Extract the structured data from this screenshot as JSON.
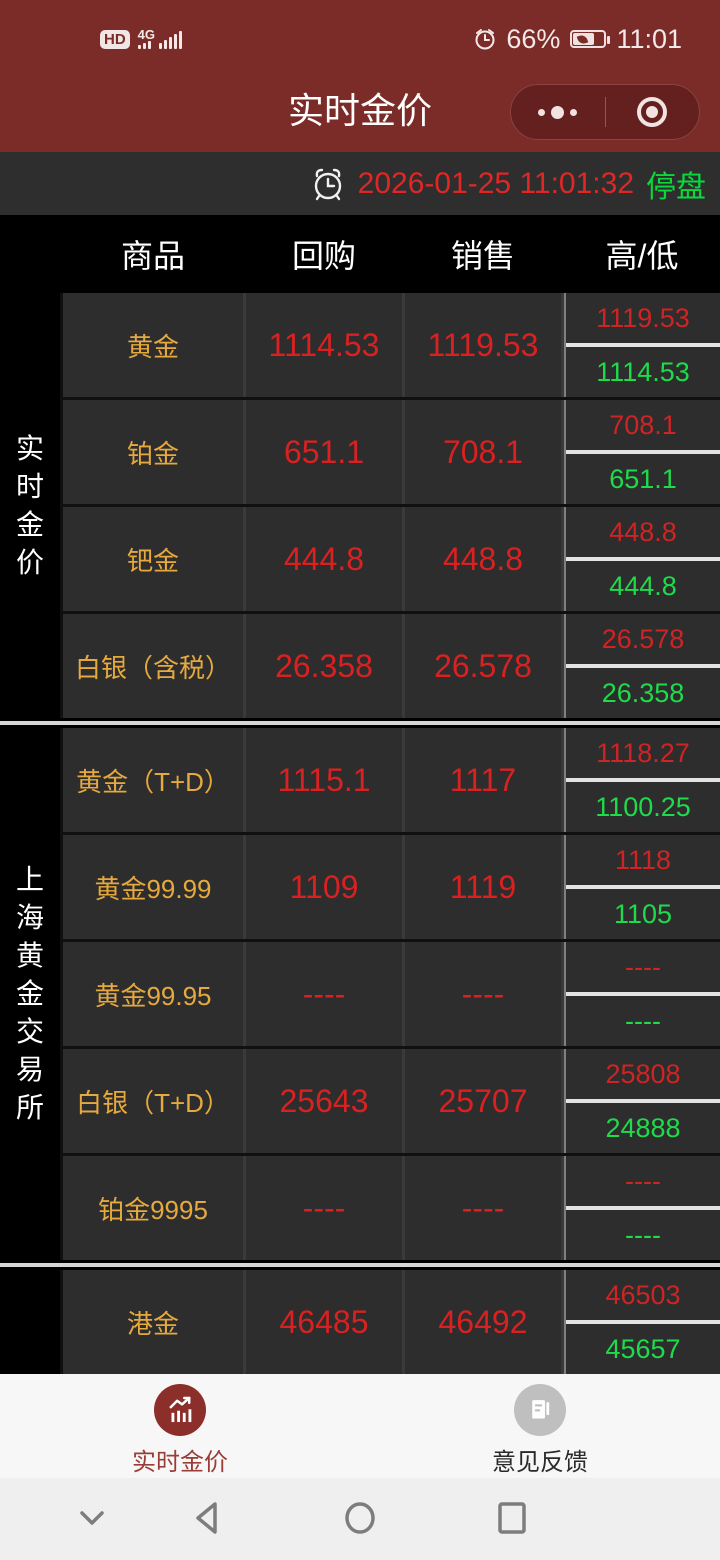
{
  "colors": {
    "app_red": "#7b2b28",
    "capsule_red": "#63201e",
    "price_red": "#d92121",
    "price_green": "#1edb4b",
    "name_gold": "#e6a93e",
    "cell_bg": "#2d2d2d",
    "timebar_bg": "#2e2e2e",
    "active_tab_red": "#8c2f2b"
  },
  "status_bar": {
    "hd_badge": "HD",
    "network": "4G",
    "battery_pct": "66%",
    "clock": "11:01",
    "icons": [
      "hd-badge",
      "signal-bars-icon",
      "alarm-icon",
      "battery-saver-icon"
    ]
  },
  "header": {
    "title": "实时金价",
    "capsule_icons": [
      "more-dots-icon",
      "minimize-target-icon"
    ]
  },
  "time_bar": {
    "icon": "alarm-clock-icon",
    "datetime": "2026-01-25 11:01:32",
    "market_status": "停盘"
  },
  "table": {
    "headers": [
      "商品",
      "回购",
      "销售",
      "高/低"
    ],
    "sections": [
      {
        "label": "实时金价",
        "rows": [
          {
            "name": "黄金",
            "buy": "1114.53",
            "sell": "1119.53",
            "high": "1119.53",
            "low": "1114.53"
          },
          {
            "name": "铂金",
            "buy": "651.1",
            "sell": "708.1",
            "high": "708.1",
            "low": "651.1"
          },
          {
            "name": "钯金",
            "buy": "444.8",
            "sell": "448.8",
            "high": "448.8",
            "low": "444.8"
          },
          {
            "name": "白银（含税）",
            "buy": "26.358",
            "sell": "26.578",
            "high": "26.578",
            "low": "26.358"
          }
        ]
      },
      {
        "label": "上海黄金交易所",
        "rows": [
          {
            "name": "黄金（T+D）",
            "buy": "1115.1",
            "sell": "1117",
            "high": "1118.27",
            "low": "1100.25"
          },
          {
            "name": "黄金99.99",
            "buy": "1109",
            "sell": "1119",
            "high": "1118",
            "low": "1105"
          },
          {
            "name": "黄金99.95",
            "buy": "----",
            "sell": "----",
            "high": "----",
            "low": "----"
          },
          {
            "name": "白银（T+D）",
            "buy": "25643",
            "sell": "25707",
            "high": "25808",
            "low": "24888"
          },
          {
            "name": "铂金9995",
            "buy": "----",
            "sell": "----",
            "high": "----",
            "low": "----"
          }
        ]
      },
      {
        "label": "",
        "rows": [
          {
            "name": "港金",
            "buy": "46485",
            "sell": "46492",
            "high": "46503",
            "low": "45657"
          }
        ]
      }
    ]
  },
  "tab_bar": {
    "tabs": [
      {
        "label": "实时金价",
        "icon": "price-chart-icon",
        "active": true
      },
      {
        "label": "意见反馈",
        "icon": "feedback-doc-icon",
        "active": false
      }
    ]
  },
  "nav_bar": {
    "icons": [
      "chevron-down-icon",
      "back-icon",
      "home-icon",
      "recents-icon"
    ]
  }
}
